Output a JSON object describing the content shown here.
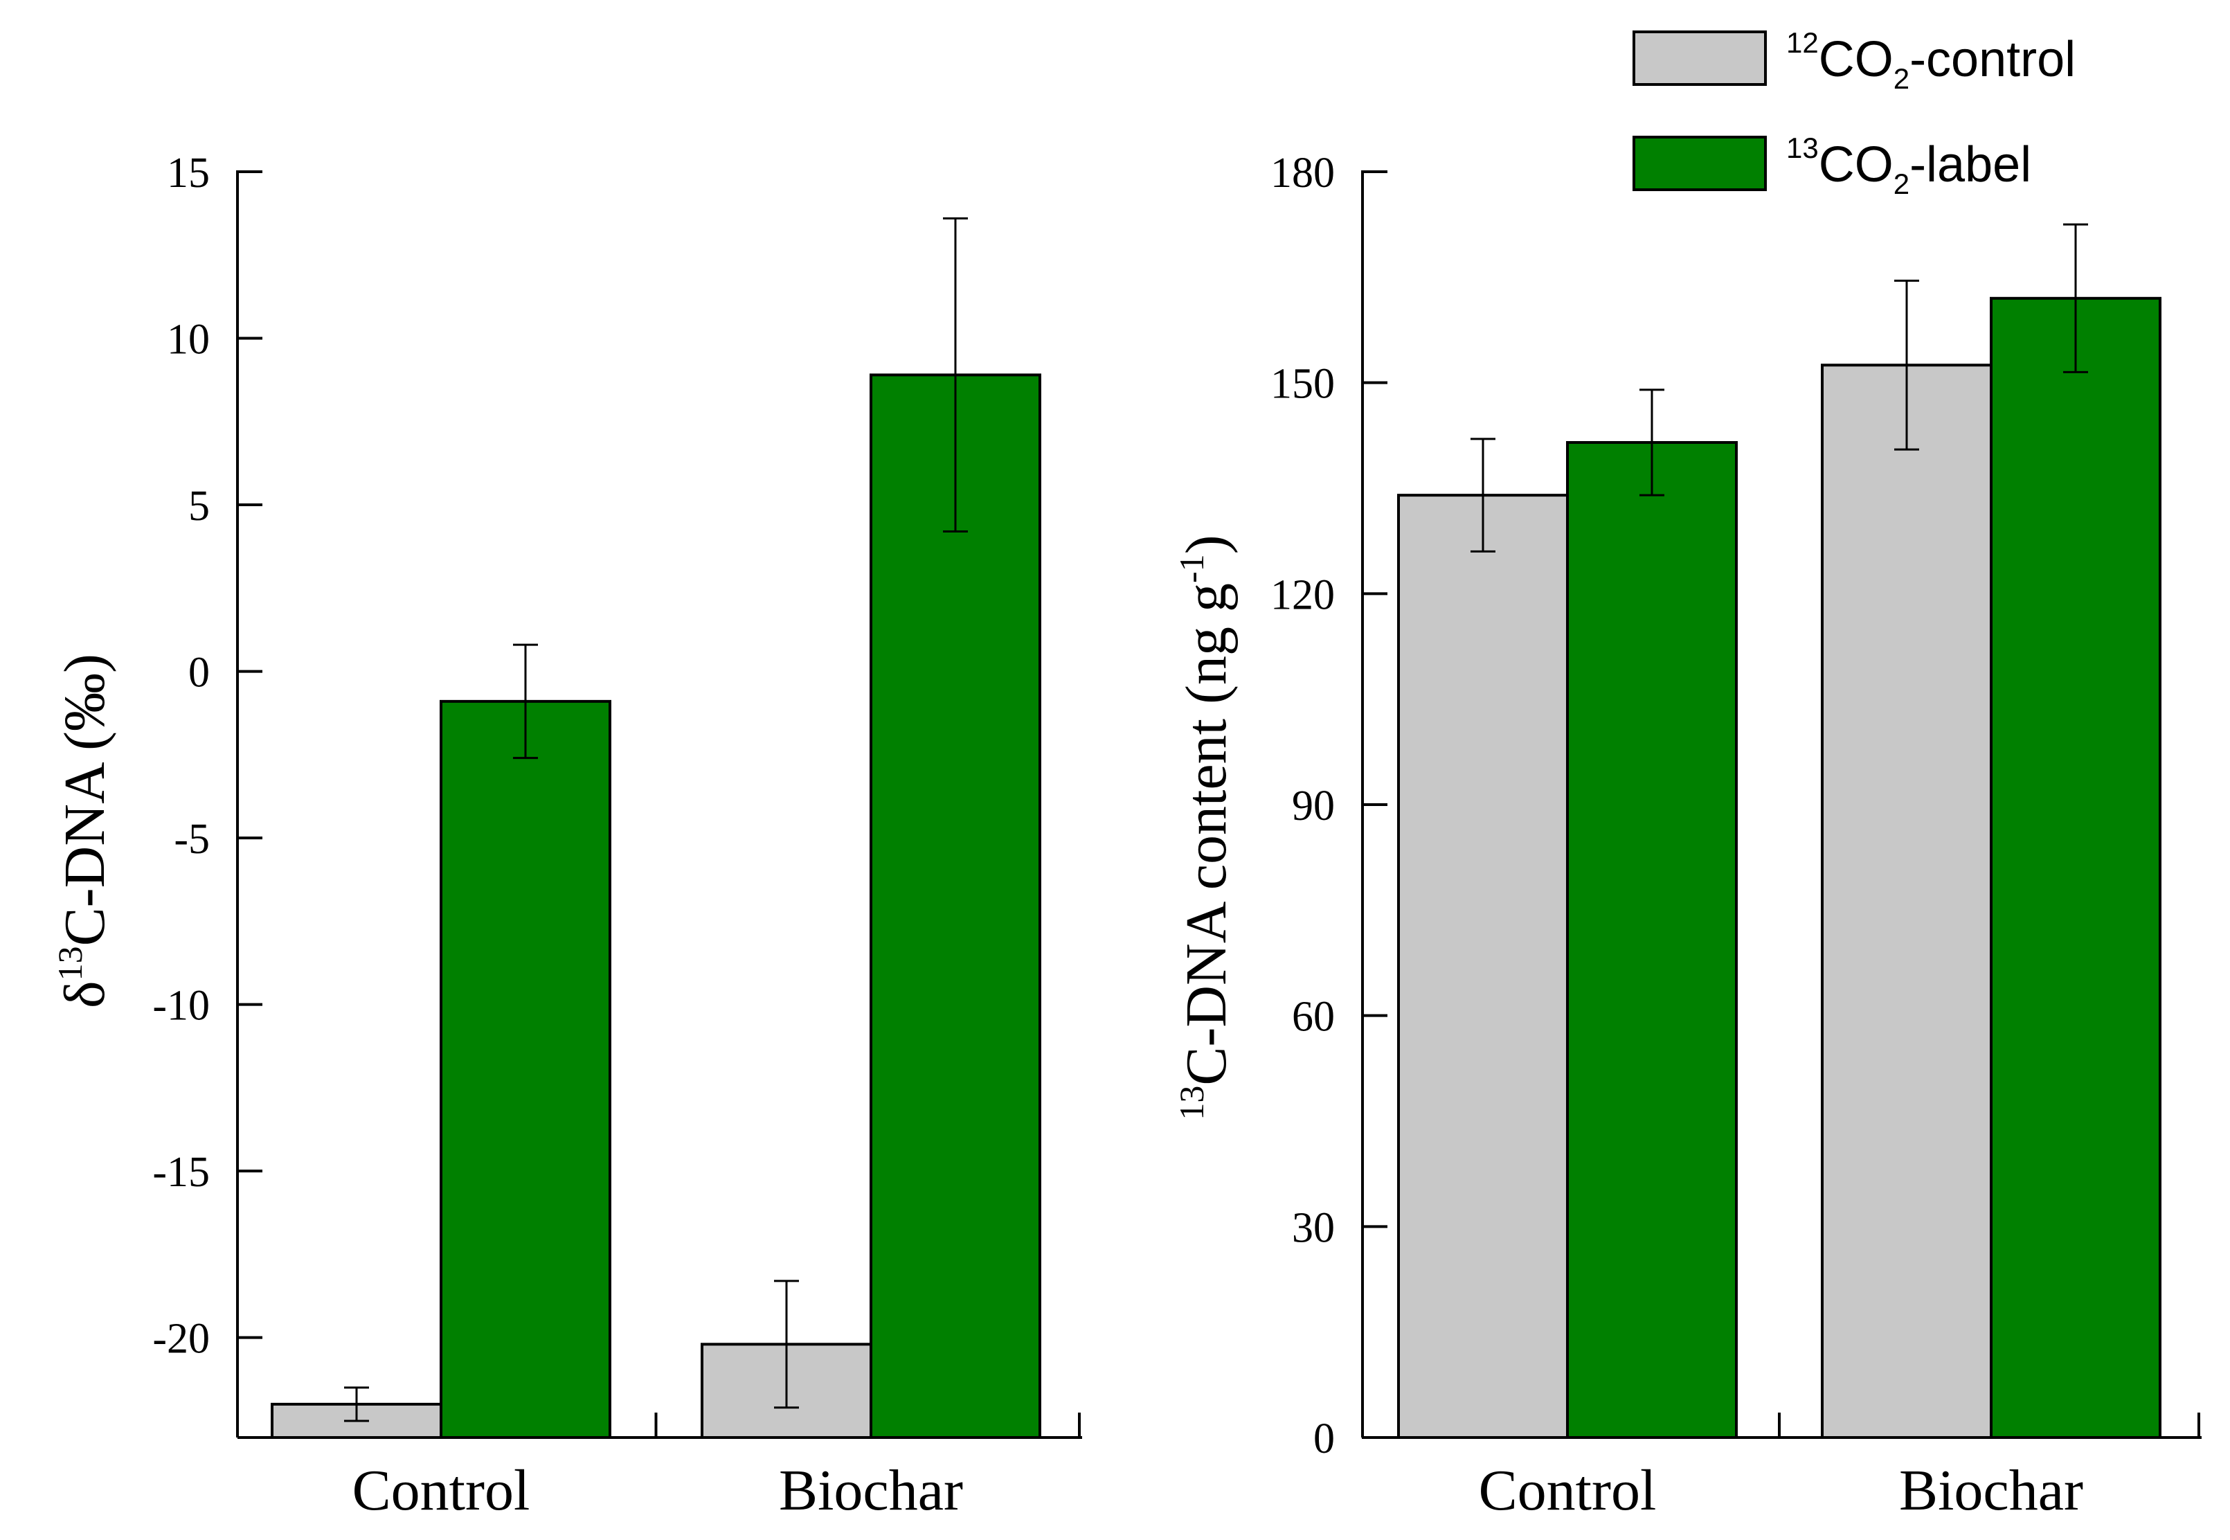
{
  "colors": {
    "control": "#c8c8c8",
    "label": "#008000",
    "axis": "#000000"
  },
  "chart_data": [
    {
      "type": "bar",
      "id": "delta13c",
      "categories": [
        "Control",
        "Biochar"
      ],
      "ylabel": {
        "prefix": "δ",
        "sup": "13",
        "main": "C-DNA (‰)"
      },
      "ylim": [
        -23,
        15
      ],
      "yticks": [
        15,
        10,
        5,
        0,
        -5,
        -10,
        -15,
        -20
      ],
      "series": [
        {
          "name": "12CO2-control",
          "values": [
            -22.0,
            -20.2
          ],
          "errors": [
            0.5,
            1.9
          ]
        },
        {
          "name": "13CO2-label",
          "values": [
            -0.9,
            8.9
          ],
          "errors": [
            1.7,
            4.7
          ]
        }
      ]
    },
    {
      "type": "bar",
      "id": "content13c",
      "categories": [
        "Control",
        "Biochar"
      ],
      "ylabel": {
        "prefix": "",
        "sup": "13",
        "main": "C-DNA content (ng g",
        "sup2": "-1",
        "suffix": ")"
      },
      "ylim": [
        0,
        180
      ],
      "yticks": [
        0,
        30,
        60,
        90,
        120,
        150,
        180
      ],
      "series": [
        {
          "name": "12CO2-control",
          "values": [
            134,
            152.5
          ],
          "errors": [
            8,
            12
          ]
        },
        {
          "name": "13CO2-label",
          "values": [
            141.5,
            162
          ],
          "errors": [
            7.5,
            10.5
          ]
        }
      ]
    }
  ],
  "legend": {
    "position": "top-right",
    "entries": [
      {
        "sup": "12",
        "main": "CO",
        "sub": "2",
        "suffix": "-control"
      },
      {
        "sup": "13",
        "main": "CO",
        "sub": "2",
        "suffix": "-label"
      }
    ]
  }
}
